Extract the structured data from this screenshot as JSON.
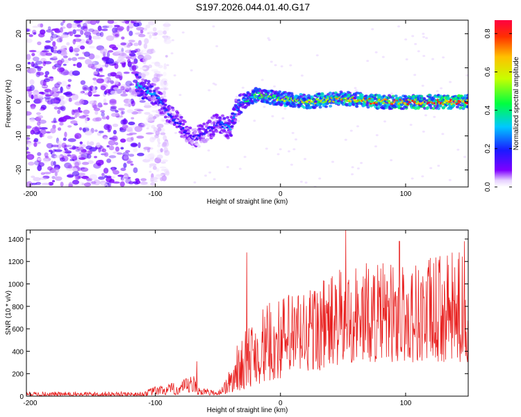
{
  "title": "S197.2026.044.01.40.G17",
  "colors": {
    "snr_line": "#e8201f",
    "axis": "#000000",
    "spectrogram_low": "#8000ff",
    "spectrogram_high": "#ff0000"
  },
  "chart_data": [
    {
      "type": "heatmap",
      "name": "spectrogram",
      "title": "S197.2026.044.01.40.G17",
      "xlabel": "Height of straight line (km)",
      "ylabel": "Frequency (Hz)",
      "xlim": [
        -203,
        150
      ],
      "ylim": [
        -25,
        24
      ],
      "xticks": [
        -200,
        -100,
        0,
        100
      ],
      "yticks": [
        -20,
        -10,
        0,
        10,
        20
      ],
      "colorbar": {
        "label": "Normalized spectral amplitude",
        "range": [
          0.0,
          0.87
        ],
        "ticks": [
          0.0,
          0.2,
          0.4,
          0.6,
          0.8
        ],
        "colormap": "rainbow"
      },
      "ridge": {
        "x": [
          -115,
          -100,
          -90,
          -80,
          -70,
          -60,
          -50,
          -40,
          -35,
          -30,
          -20,
          0,
          20,
          50,
          80,
          100,
          150
        ],
        "frequency": [
          5,
          2,
          -3,
          -7,
          -11,
          -9,
          -6,
          -8,
          -2,
          0,
          2,
          1,
          0,
          1,
          0,
          0,
          0
        ],
        "amplitude": [
          0.35,
          0.3,
          0.25,
          0.2,
          0.18,
          0.2,
          0.22,
          0.3,
          0.35,
          0.4,
          0.5,
          0.6,
          0.65,
          0.7,
          0.8,
          0.82,
          0.85
        ]
      },
      "noise_region_x": [
        -203,
        -110
      ],
      "noise_amplitude": 0.1
    },
    {
      "type": "line",
      "name": "snr",
      "xlabel": "Height of straight line (km)",
      "ylabel": "SNR (10 * v/v)",
      "xlim": [
        -203,
        150
      ],
      "ylim": [
        0,
        1480
      ],
      "xticks": [
        -200,
        -100,
        0,
        100
      ],
      "yticks": [
        0,
        200,
        400,
        600,
        800,
        1000,
        1200,
        1400
      ],
      "series": [
        {
          "name": "SNR",
          "envelope_x": [
            -203,
            -110,
            -100,
            -80,
            -70,
            -65,
            -50,
            -40,
            -35,
            -20,
            0,
            20,
            40,
            60,
            80,
            100,
            120,
            150
          ],
          "envelope_lo": [
            0,
            0,
            10,
            10,
            20,
            10,
            10,
            20,
            40,
            100,
            150,
            200,
            250,
            300,
            300,
            300,
            300,
            300
          ],
          "envelope_hi": [
            40,
            40,
            90,
            130,
            200,
            90,
            40,
            250,
            450,
            750,
            900,
            1000,
            1100,
            1200,
            1200,
            1200,
            1250,
            1300
          ],
          "peaks": [
            {
              "x": -67,
              "y": 310
            },
            {
              "x": -27,
              "y": 1280
            },
            {
              "x": 52,
              "y": 1480
            },
            {
              "x": 95,
              "y": 1380
            },
            {
              "x": 147,
              "y": 1380
            }
          ]
        }
      ]
    }
  ]
}
